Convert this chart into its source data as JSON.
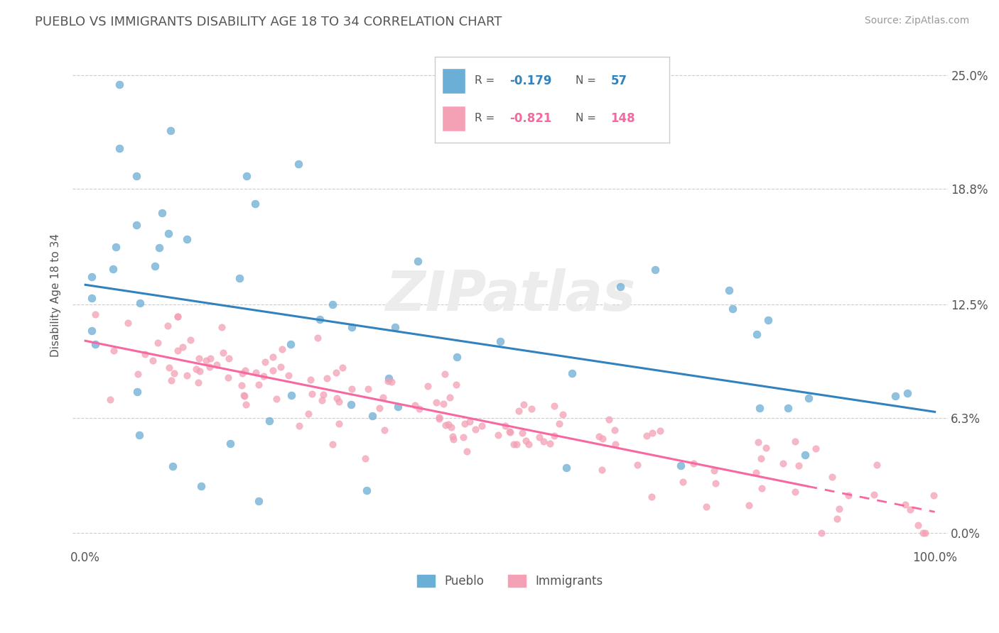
{
  "title": "PUEBLO VS IMMIGRANTS DISABILITY AGE 18 TO 34 CORRELATION CHART",
  "source_text": "Source: ZipAtlas.com",
  "ylabel": "Disability Age 18 to 34",
  "pueblo_color": "#6baed6",
  "immigrants_color": "#f4a0b5",
  "pueblo_line_color": "#3182bd",
  "immigrants_line_color": "#f768a1",
  "r_pueblo": -0.179,
  "n_pueblo": 57,
  "r_immigrants": -0.821,
  "n_immigrants": 148,
  "ytick_vals": [
    0.0,
    0.063,
    0.125,
    0.188,
    0.25
  ],
  "ytick_labels": [
    "0.0%",
    "6.3%",
    "12.5%",
    "18.8%",
    "25.0%"
  ],
  "xtick_labels": [
    "0.0%",
    "100.0%"
  ]
}
